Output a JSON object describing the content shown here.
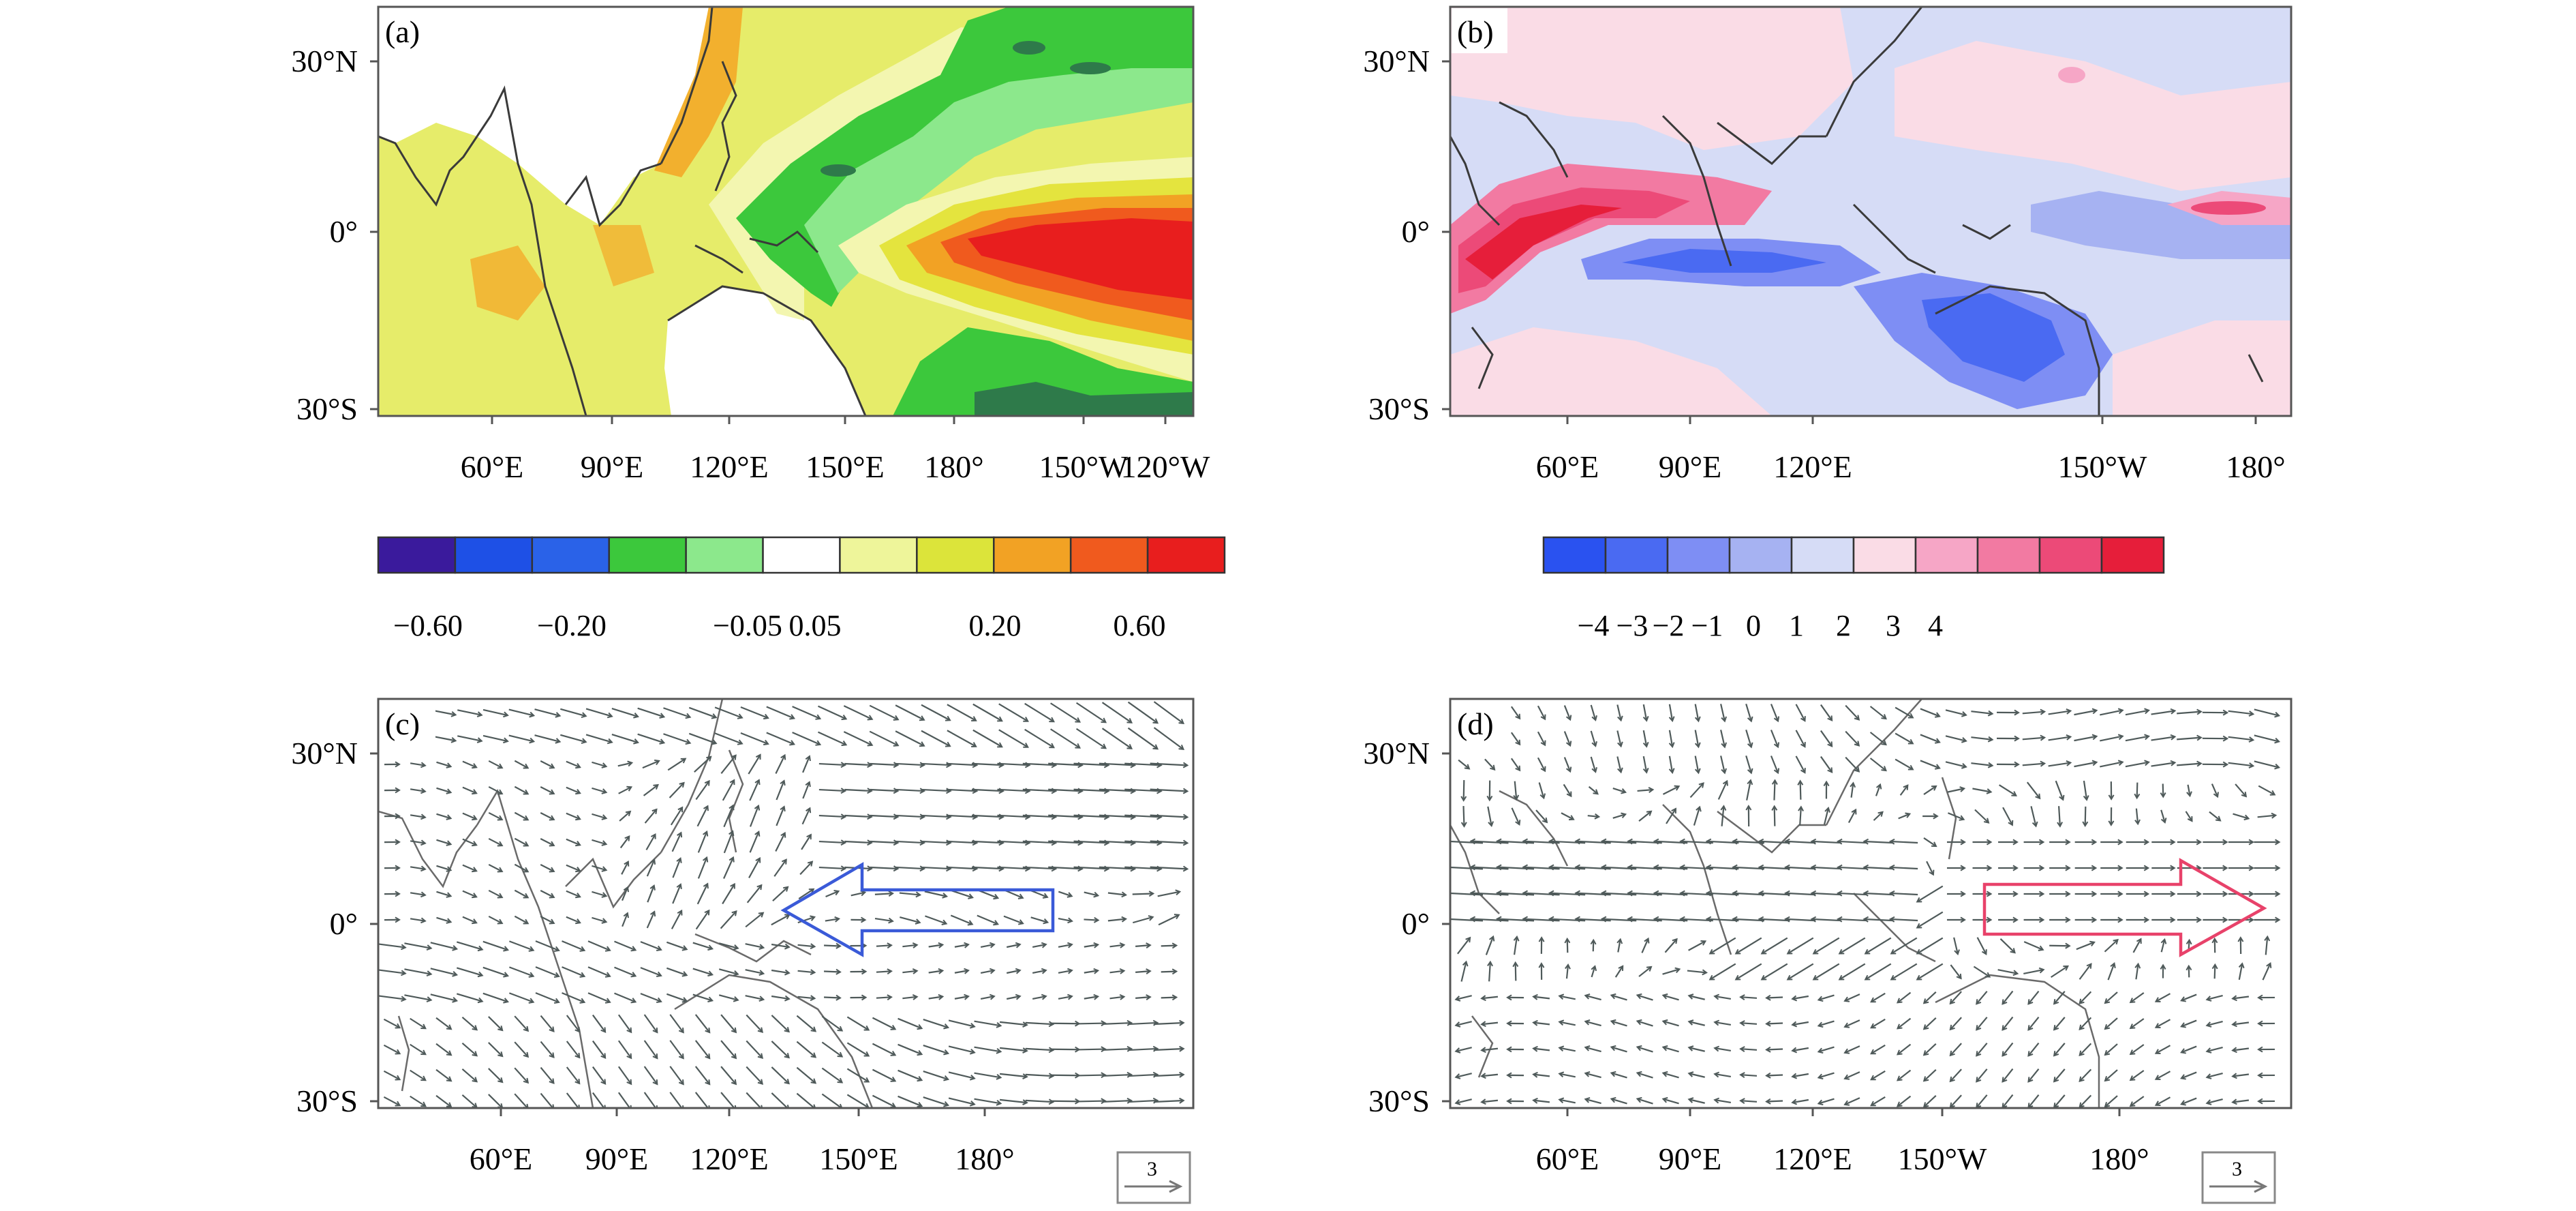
{
  "figure": {
    "panels": [
      {
        "id": "a",
        "label": "(a)",
        "type": "shaded-map",
        "lat_labels": [
          "30°N",
          "0°",
          "30°S"
        ],
        "lon_labels": [
          "60°E",
          "90°E",
          "120°E",
          "150°E",
          "180°",
          "150°W",
          "120°W"
        ],
        "colorbar": {
          "colors": [
            "#3a1a9c",
            "#1e50e6",
            "#2a62e8",
            "#3cc83c",
            "#8ce88c",
            "#ffffff",
            "#eef59a",
            "#dce43a",
            "#f2a224",
            "#f05a1e",
            "#e81e1e"
          ],
          "tick_labels": [
            "−0.60",
            "−0.20",
            "−0.05",
            "0.05",
            "0.20",
            "0.60"
          ]
        },
        "features": [
          {
            "name": "positive-anomaly-eastern-pacific",
            "color": "#e81e1e"
          },
          {
            "name": "negative-anomaly-western-pacific",
            "color": "#3cc83c"
          }
        ]
      },
      {
        "id": "b",
        "label": "(b)",
        "type": "shaded-map",
        "lat_labels": [
          "30°N",
          "0°",
          "30°S"
        ],
        "lon_labels": [
          "60°E",
          "90°E",
          "120°E",
          "150°W",
          "180°"
        ],
        "colorbar": {
          "colors": [
            "#2a52f0",
            "#4a6af2",
            "#7e8ef4",
            "#a6b2f2",
            "#d6dcf6",
            "#fadce6",
            "#f6a6c6",
            "#f27aa2",
            "#ec4a78",
            "#e61e3a"
          ],
          "tick_labels": [
            "−4",
            "−3",
            "−2",
            "−1",
            "0",
            "1",
            "2",
            "3",
            "4"
          ]
        }
      },
      {
        "id": "c",
        "label": "(c)",
        "type": "vector-map",
        "lat_labels": [
          "30°N",
          "0°",
          "30°S"
        ],
        "lon_labels": [
          "60°E",
          "90°E",
          "120°E",
          "150°E",
          "180°"
        ],
        "reference_vector": "3",
        "big_arrow": {
          "direction": "west",
          "color": "#3a5ad8"
        }
      },
      {
        "id": "d",
        "label": "(d)",
        "type": "vector-map",
        "lat_labels": [
          "30°N",
          "0°",
          "30°S"
        ],
        "lon_labels": [
          "60°E",
          "90°E",
          "120°E",
          "150°W",
          "180°"
        ],
        "reference_vector": "3",
        "big_arrow": {
          "direction": "east",
          "color": "#e8426a"
        }
      }
    ]
  }
}
